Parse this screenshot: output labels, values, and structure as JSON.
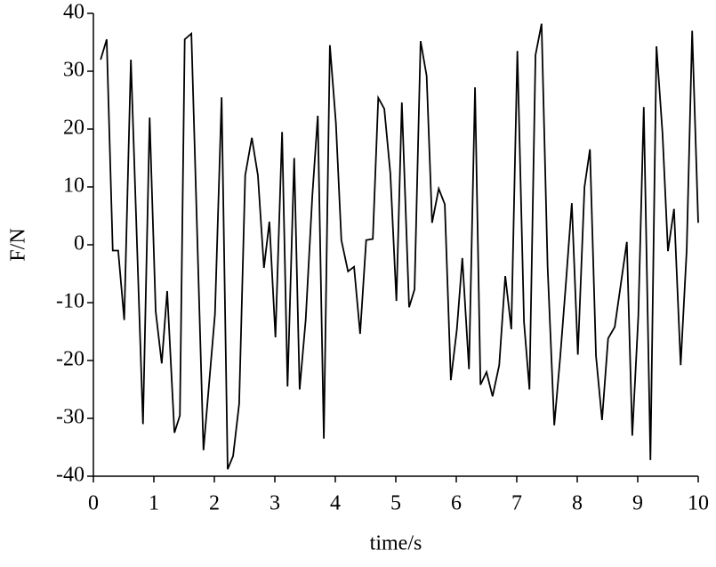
{
  "chart_data": {
    "type": "line",
    "xlabel": "time/s",
    "ylabel": "F/N",
    "color": "#000000",
    "x": [
      0.12,
      0.22,
      0.32,
      0.41,
      0.51,
      0.62,
      0.82,
      0.93,
      1.03,
      1.13,
      1.22,
      1.34,
      1.43,
      1.51,
      1.62,
      1.82,
      2.01,
      2.12,
      2.22,
      2.31,
      2.41,
      2.51,
      2.62,
      2.72,
      2.82,
      2.91,
      3.01,
      3.12,
      3.21,
      3.32,
      3.41,
      3.51,
      3.62,
      3.71,
      3.81,
      3.91,
      4.01,
      4.1,
      4.21,
      4.31,
      4.41,
      4.51,
      4.62,
      4.71,
      4.81,
      4.91,
      5.01,
      5.1,
      5.22,
      5.31,
      5.41,
      5.51,
      5.6,
      5.71,
      5.81,
      5.91,
      6.01,
      6.1,
      6.21,
      6.31,
      6.4,
      6.5,
      6.6,
      6.71,
      6.81,
      6.91,
      7.01,
      7.12,
      7.21,
      7.31,
      7.41,
      7.51,
      7.62,
      7.72,
      7.81,
      7.91,
      8.01,
      8.12,
      8.21,
      8.31,
      8.41,
      8.51,
      8.62,
      8.82,
      8.91,
      9.01,
      9.1,
      9.21,
      9.31,
      9.41,
      9.5,
      9.6,
      9.71,
      9.81,
      9.9,
      10.0
    ],
    "values": [
      32,
      35.5,
      -1,
      -1,
      -13,
      32,
      -31,
      22,
      -11.5,
      -20.5,
      -8,
      -32.5,
      -29.5,
      35.5,
      36.5,
      -35.5,
      -12,
      25.5,
      -38.8,
      -36.5,
      -27.5,
      12,
      18.5,
      12,
      -4,
      4,
      -16,
      19.5,
      -24.5,
      15,
      -25,
      -13,
      8.5,
      22.3,
      -33.5,
      34.5,
      21,
      0.8,
      -4.6,
      -3.8,
      -15.4,
      0.8,
      1,
      25.4,
      23.5,
      12.3,
      -9.7,
      24.6,
      -10.8,
      -7.7,
      35.2,
      29.2,
      3.8,
      9.7,
      7,
      -23.4,
      -14.6,
      -2.3,
      -21.5,
      27.2,
      -24.2,
      -22,
      -26.2,
      -20.8,
      -5.4,
      -14.6,
      33.5,
      -13.4,
      -25,
      32.8,
      38.2,
      -3.8,
      -31.2,
      -19.2,
      -7,
      7.2,
      -19,
      10,
      16.5,
      -19.2,
      -30.3,
      -16.2,
      -14.2,
      0.5,
      -33,
      -12.3,
      23.8,
      -37.2,
      34.3,
      19.2,
      -1.1,
      6.2,
      -20.8,
      -0.8,
      37,
      3.8
    ],
    "xlim": [
      0,
      10
    ],
    "ylim": [
      -40,
      40
    ],
    "xticks": [
      0,
      1,
      2,
      3,
      4,
      5,
      6,
      7,
      8,
      9,
      10
    ],
    "yticks": [
      -40,
      -30,
      -20,
      -10,
      0,
      10,
      20,
      30,
      40
    ]
  }
}
